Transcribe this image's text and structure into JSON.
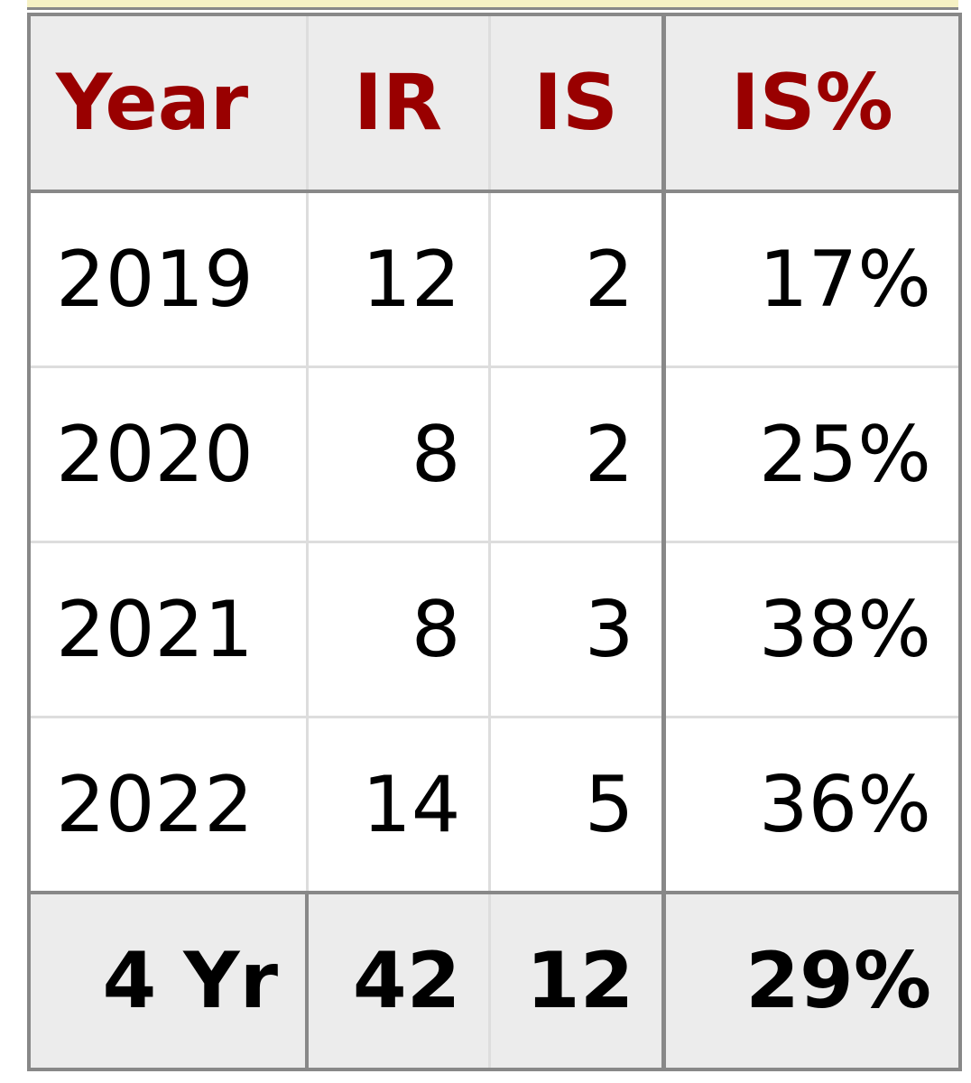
{
  "table": {
    "header": [
      "Year",
      "IR",
      "IS",
      "IS%"
    ],
    "rows": [
      [
        "2019",
        "12",
        "2",
        "17%"
      ],
      [
        "2020",
        "8",
        "2",
        "25%"
      ],
      [
        "2021",
        "8",
        "3",
        "38%"
      ],
      [
        "2022",
        "14",
        "5",
        "36%"
      ]
    ],
    "footer": [
      "4 Yr",
      "42",
      "12",
      "29%"
    ]
  }
}
